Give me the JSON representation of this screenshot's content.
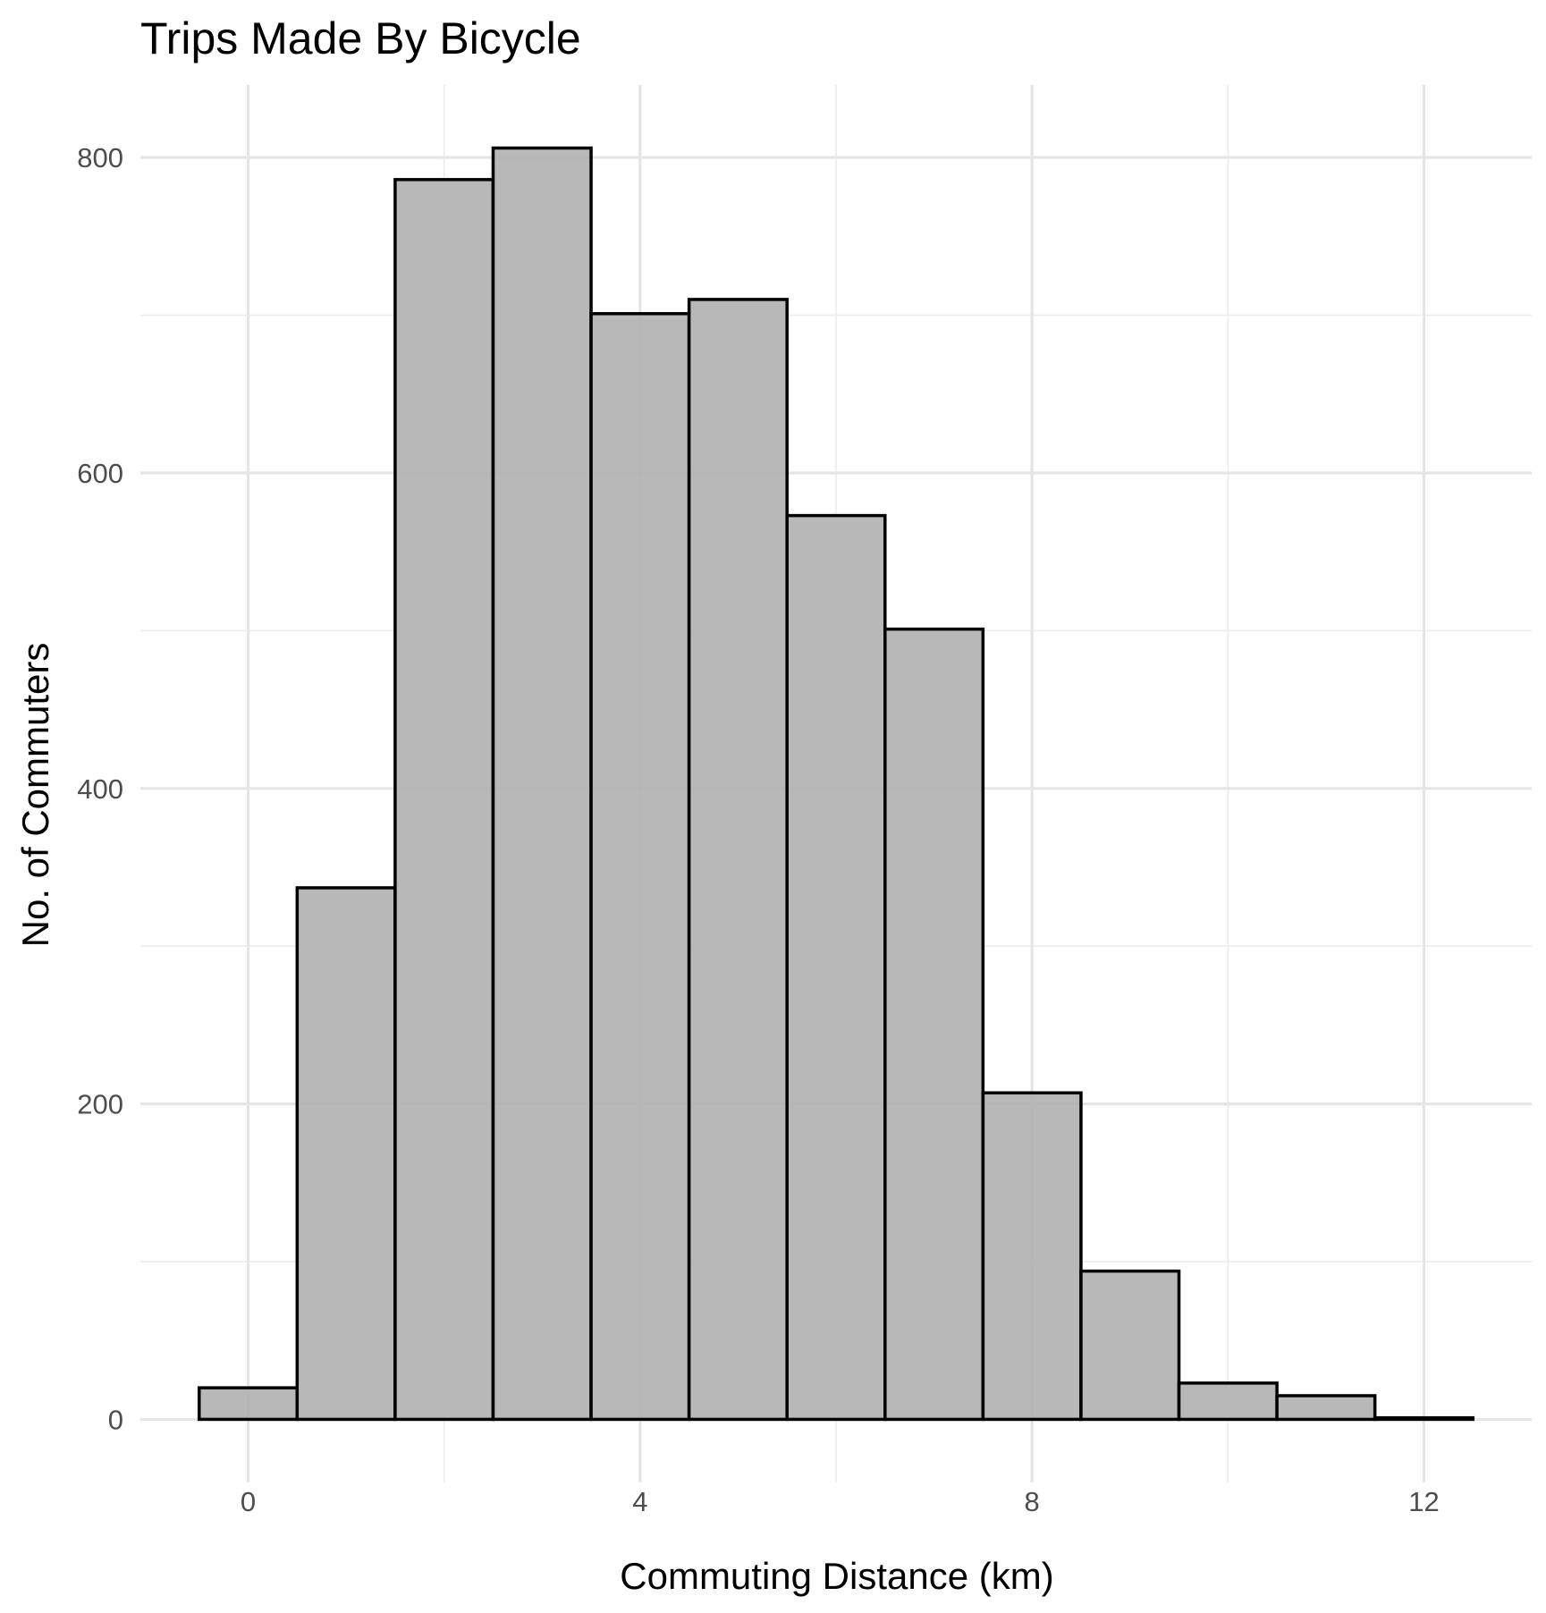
{
  "chart_data": {
    "type": "bar",
    "title": "Trips Made By Bicycle",
    "xlabel": "Commuting Distance (km)",
    "ylabel": "No. of Commuters",
    "bin_width": 1,
    "bins": [
      {
        "start": -0.5,
        "end": 0.5,
        "count": 20
      },
      {
        "start": 0.5,
        "end": 1.5,
        "count": 337
      },
      {
        "start": 1.5,
        "end": 2.5,
        "count": 786
      },
      {
        "start": 2.5,
        "end": 3.5,
        "count": 806
      },
      {
        "start": 3.5,
        "end": 4.5,
        "count": 701
      },
      {
        "start": 4.5,
        "end": 5.5,
        "count": 710
      },
      {
        "start": 5.5,
        "end": 6.5,
        "count": 573
      },
      {
        "start": 6.5,
        "end": 7.5,
        "count": 501
      },
      {
        "start": 7.5,
        "end": 8.5,
        "count": 207
      },
      {
        "start": 8.5,
        "end": 9.5,
        "count": 94
      },
      {
        "start": 9.5,
        "end": 10.5,
        "count": 23
      },
      {
        "start": 10.5,
        "end": 11.5,
        "count": 15
      },
      {
        "start": 11.5,
        "end": 12.5,
        "count": 1
      }
    ],
    "xlim": [
      -1.1,
      13.1
    ],
    "ylim": [
      -40,
      846
    ],
    "x_ticks": [
      0,
      4,
      8,
      12
    ],
    "y_ticks": [
      0,
      200,
      400,
      600,
      800
    ],
    "x_tick_labels": [
      "0",
      "4",
      "8",
      "12"
    ],
    "y_tick_labels": [
      "0",
      "200",
      "400",
      "600",
      "800"
    ],
    "grid": true,
    "legend": "none",
    "colors": {
      "bar_fill": "#b3b3b3",
      "bar_stroke": "#000000",
      "grid_major": "#e5e5e5",
      "grid_minor": "#ececec",
      "tick_text": "#4d4d4d"
    }
  }
}
